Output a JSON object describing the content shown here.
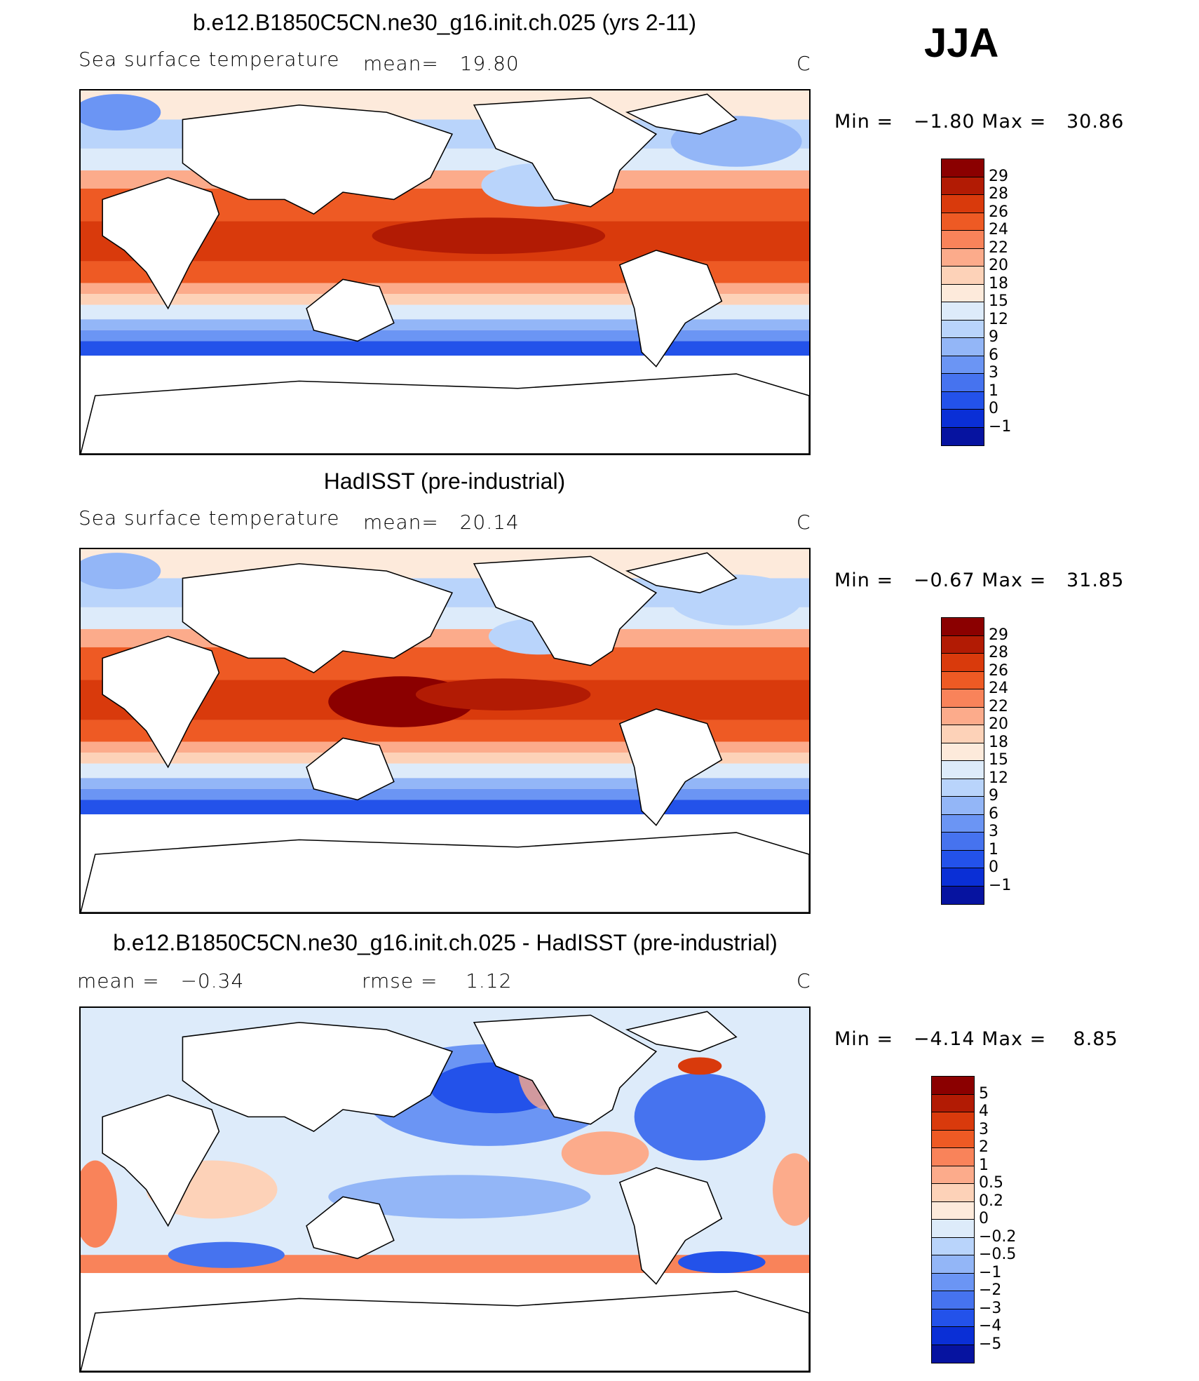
{
  "season": "JJA",
  "panels": [
    {
      "title": "b.e12.B1850C5CN.ne30_g16.init.ch.025 (yrs 2-11)",
      "variable": "Sea surface temperature",
      "stat1": "mean=   19.80",
      "stat2": "",
      "units": "C",
      "minmax": "Min =   −1.80 Max =   30.86",
      "colorbar": {
        "colors": [
          "#8b0000",
          "#b21b04",
          "#d93a0c",
          "#ee5a24",
          "#f9835a",
          "#fcab8b",
          "#fdd2b8",
          "#fdeadb",
          "#ddebfa",
          "#b9d4fb",
          "#93b6f7",
          "#6b95f4",
          "#4673ef",
          "#2352ea",
          "#0a2fd6",
          "#0613a0"
        ],
        "labels": [
          "29",
          "28",
          "26",
          "24",
          "22",
          "20",
          "18",
          "15",
          "12",
          "9",
          "6",
          "3",
          "1",
          "0",
          "−1"
        ]
      }
    },
    {
      "title": "HadISST (pre-industrial)",
      "variable": "Sea surface temperature",
      "stat1": "mean=   20.14",
      "stat2": "",
      "units": "C",
      "minmax": "Min =   −0.67 Max =   31.85",
      "colorbar": {
        "colors": [
          "#8b0000",
          "#b21b04",
          "#d93a0c",
          "#ee5a24",
          "#f9835a",
          "#fcab8b",
          "#fdd2b8",
          "#fdeadb",
          "#ddebfa",
          "#b9d4fb",
          "#93b6f7",
          "#6b95f4",
          "#4673ef",
          "#2352ea",
          "#0a2fd6",
          "#0613a0"
        ],
        "labels": [
          "29",
          "28",
          "26",
          "24",
          "22",
          "20",
          "18",
          "15",
          "12",
          "9",
          "6",
          "3",
          "1",
          "0",
          "−1"
        ]
      }
    },
    {
      "title": "b.e12.B1850C5CN.ne30_g16.init.ch.025 - HadISST (pre-industrial)",
      "variable": "",
      "stat1": "mean =   −0.34",
      "stat2": "rmse =    1.12",
      "units": "C",
      "minmax": "Min =   −4.14 Max =    8.85",
      "colorbar": {
        "colors": [
          "#8b0000",
          "#b21b04",
          "#d93a0c",
          "#ee5a24",
          "#f9835a",
          "#fcab8b",
          "#fdd2b8",
          "#fdeadb",
          "#ddebfa",
          "#b9d4fb",
          "#93b6f7",
          "#6b95f4",
          "#4673ef",
          "#2352ea",
          "#0a2fd6",
          "#0613a0"
        ],
        "labels": [
          "5",
          "4",
          "3",
          "2",
          "1",
          "0.5",
          "0.2",
          "0",
          "−0.2",
          "−0.5",
          "−1",
          "−2",
          "−3",
          "−4",
          "−5"
        ]
      }
    }
  ]
}
